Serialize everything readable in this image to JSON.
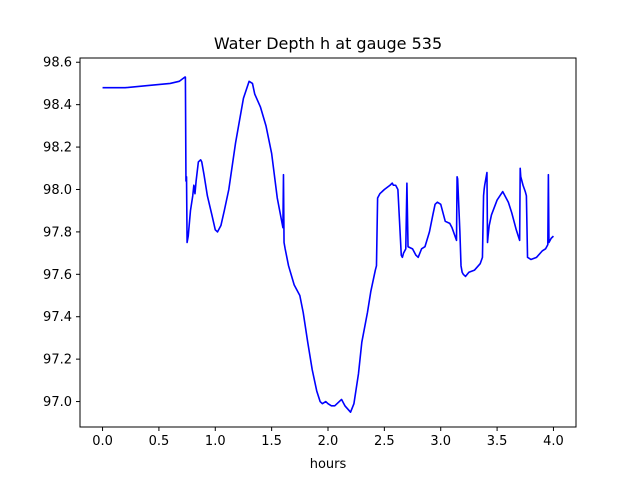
{
  "chart_data": {
    "type": "line",
    "title": "Water Depth h at gauge 535",
    "xlabel": "hours",
    "ylabel": "",
    "xlim": [
      -0.2,
      4.2
    ],
    "ylim": [
      96.88,
      98.62
    ],
    "xticks": [
      0.0,
      0.5,
      1.0,
      1.5,
      2.0,
      2.5,
      3.0,
      3.5,
      4.0
    ],
    "xtick_labels": [
      "0.0",
      "0.5",
      "1.0",
      "1.5",
      "2.0",
      "2.5",
      "3.0",
      "3.5",
      "4.0"
    ],
    "yticks": [
      97.0,
      97.2,
      97.4,
      97.6,
      97.8,
      98.0,
      98.2,
      98.4,
      98.6
    ],
    "ytick_labels": [
      "97.0",
      "97.2",
      "97.4",
      "97.6",
      "97.8",
      "98.0",
      "98.2",
      "98.4",
      "98.6"
    ],
    "grid": false,
    "series": [
      {
        "color": "#0000ff",
        "x": [
          0.0,
          0.2,
          0.4,
          0.6,
          0.68,
          0.73,
          0.735,
          0.74,
          0.745,
          0.75,
          0.76,
          0.78,
          0.8,
          0.81,
          0.82,
          0.83,
          0.85,
          0.87,
          0.88,
          0.9,
          0.93,
          0.97,
          1.0,
          1.02,
          1.05,
          1.08,
          1.12,
          1.18,
          1.25,
          1.3,
          1.33,
          1.35,
          1.4,
          1.45,
          1.5,
          1.55,
          1.6,
          1.605,
          1.61,
          1.62,
          1.65,
          1.7,
          1.75,
          1.78,
          1.82,
          1.86,
          1.9,
          1.93,
          1.95,
          1.98,
          2.0,
          2.03,
          2.06,
          2.1,
          2.12,
          2.15,
          2.2,
          2.23,
          2.27,
          2.3,
          2.35,
          2.38,
          2.42,
          2.43,
          2.44,
          2.46,
          2.5,
          2.55,
          2.57,
          2.58,
          2.6,
          2.62,
          2.65,
          2.66,
          2.67,
          2.69,
          2.7,
          2.71,
          2.75,
          2.78,
          2.8,
          2.83,
          2.86,
          2.9,
          2.93,
          2.95,
          2.97,
          3.0,
          3.04,
          3.08,
          3.1,
          3.12,
          3.14,
          3.145,
          3.15,
          3.17,
          3.18,
          3.19,
          3.2,
          3.22,
          3.25,
          3.3,
          3.35,
          3.37,
          3.38,
          3.385,
          3.39,
          3.41,
          3.415,
          3.42,
          3.43,
          3.45,
          3.5,
          3.55,
          3.57,
          3.6,
          3.63,
          3.67,
          3.7,
          3.705,
          3.71,
          3.73,
          3.75,
          3.76,
          3.77,
          3.8,
          3.85,
          3.9,
          3.93,
          3.95,
          3.955,
          3.96,
          3.97,
          3.98,
          4.0
        ],
        "y": [
          98.48,
          98.48,
          98.49,
          98.5,
          98.51,
          98.53,
          98.53,
          98.04,
          98.06,
          97.75,
          97.78,
          97.9,
          97.97,
          98.02,
          97.98,
          98.04,
          98.13,
          98.14,
          98.13,
          98.07,
          97.97,
          97.88,
          97.81,
          97.8,
          97.83,
          97.9,
          98.0,
          98.22,
          98.43,
          98.51,
          98.5,
          98.45,
          98.39,
          98.3,
          98.17,
          97.96,
          97.82,
          98.07,
          97.75,
          97.72,
          97.64,
          97.55,
          97.5,
          97.42,
          97.28,
          97.15,
          97.05,
          97.0,
          96.99,
          97.0,
          96.99,
          96.98,
          96.98,
          97.0,
          97.01,
          96.98,
          96.95,
          96.99,
          97.13,
          97.28,
          97.42,
          97.52,
          97.62,
          97.64,
          97.96,
          97.98,
          98.0,
          98.02,
          98.03,
          98.02,
          98.02,
          98.0,
          97.69,
          97.68,
          97.7,
          97.72,
          98.03,
          97.73,
          97.72,
          97.69,
          97.68,
          97.72,
          97.73,
          97.8,
          97.88,
          97.93,
          97.94,
          97.93,
          97.85,
          97.84,
          97.82,
          97.79,
          97.76,
          98.06,
          98.05,
          97.8,
          97.64,
          97.61,
          97.6,
          97.59,
          97.61,
          97.62,
          97.65,
          97.68,
          97.97,
          98.0,
          98.02,
          98.08,
          97.75,
          97.78,
          97.83,
          97.88,
          97.95,
          97.99,
          97.97,
          97.94,
          97.89,
          97.81,
          97.76,
          98.1,
          98.06,
          98.02,
          97.99,
          97.97,
          97.68,
          97.67,
          97.68,
          97.71,
          97.72,
          97.74,
          98.07,
          97.75,
          97.76,
          97.77,
          97.78
        ]
      }
    ]
  }
}
